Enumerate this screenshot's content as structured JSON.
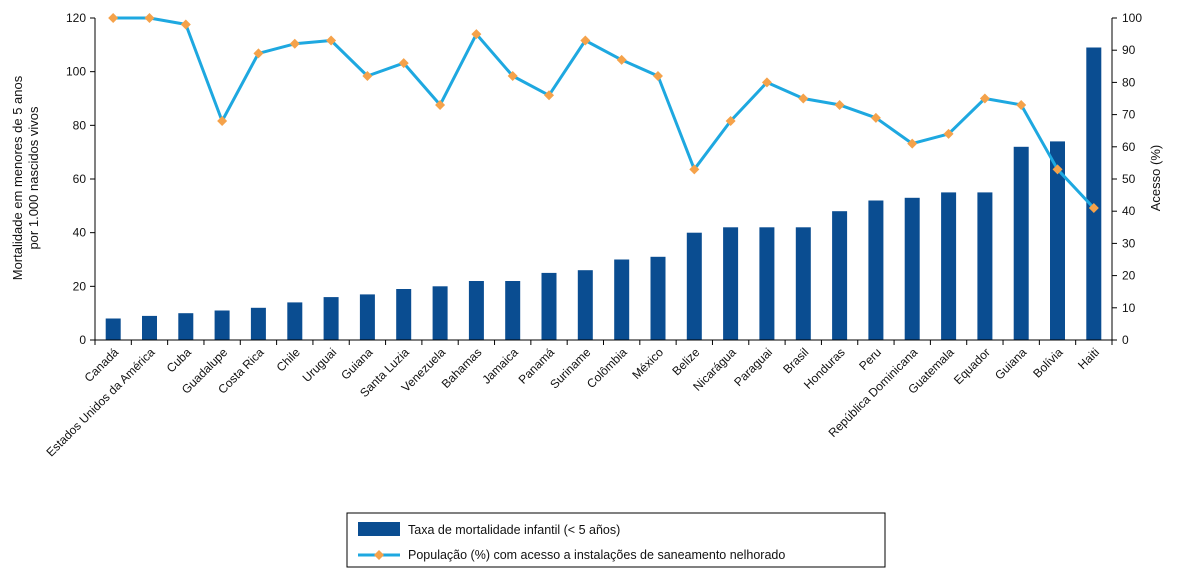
{
  "chart_data": {
    "type": "bar",
    "categories": [
      "Canadá",
      "Estados Unidos da América",
      "Cuba",
      "Guadalupe",
      "Costa Rica",
      "Chile",
      "Uruguai",
      "Guiana",
      "Santa Luzia",
      "Venezuela",
      "Bahamas",
      "Jamaica",
      "Panamá",
      "Suriname",
      "Colômbia",
      "México",
      "Belize",
      "Nicarágua",
      "Paraguai",
      "Brasil",
      "Honduras",
      "Peru",
      "República Dominicana",
      "Guatemala",
      "Equador",
      "Guiana",
      "Bolívia",
      "Haiti"
    ],
    "series": [
      {
        "name": "Taxa de mortalidade infantil (< 5 años)",
        "type": "bar",
        "axis": "left",
        "color": "#0a4d91",
        "values": [
          8,
          9,
          10,
          11,
          12,
          14,
          16,
          17,
          19,
          20,
          22,
          22,
          25,
          26,
          30,
          31,
          40,
          42,
          42,
          42,
          48,
          52,
          53,
          55,
          55,
          72,
          74,
          109
        ]
      },
      {
        "name": "População (%) com acesso a instalações de saneamento nelhorado",
        "type": "line",
        "axis": "right",
        "color": "#1ea8e0",
        "marker_color": "#f5a24a",
        "values": [
          100,
          100,
          98,
          68,
          89,
          92,
          93,
          82,
          86,
          73,
          95,
          82,
          76,
          93,
          87,
          82,
          53,
          68,
          80,
          75,
          73,
          69,
          61,
          64,
          75,
          73,
          53,
          41
        ]
      }
    ],
    "ylabel_left": [
      "Mortalidade em menores de 5 anos",
      "por 1.000 nascidos vivos"
    ],
    "ylabel_right": "Acesso (%)",
    "ylim_left": [
      0,
      120
    ],
    "yticks_left": [
      0,
      20,
      40,
      60,
      80,
      100,
      120
    ],
    "ylim_right": [
      0,
      100
    ],
    "yticks_right": [
      0,
      10,
      20,
      30,
      40,
      50,
      60,
      70,
      80,
      90,
      100
    ],
    "grid": false,
    "legend_position": "bottom-center"
  }
}
